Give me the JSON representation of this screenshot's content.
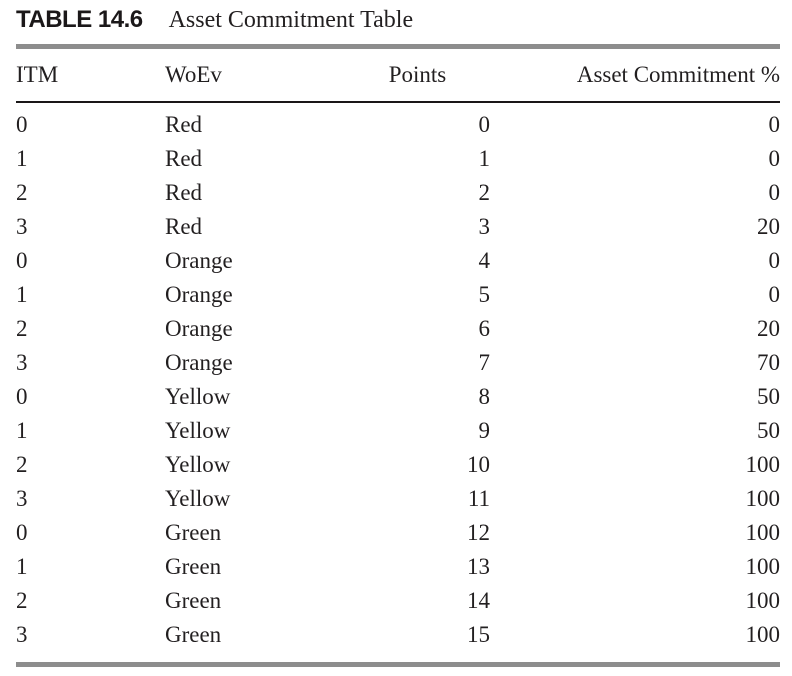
{
  "title": {
    "label": "TABLE 14.6",
    "caption": "Asset Commitment Table"
  },
  "table": {
    "columns": [
      "ITM",
      "WoEv",
      "Points",
      "Asset Commitment %"
    ],
    "rows": [
      [
        "0",
        "Red",
        "0",
        "0"
      ],
      [
        "1",
        "Red",
        "1",
        "0"
      ],
      [
        "2",
        "Red",
        "2",
        "0"
      ],
      [
        "3",
        "Red",
        "3",
        "20"
      ],
      [
        "0",
        "Orange",
        "4",
        "0"
      ],
      [
        "1",
        "Orange",
        "5",
        "0"
      ],
      [
        "2",
        "Orange",
        "6",
        "20"
      ],
      [
        "3",
        "Orange",
        "7",
        "70"
      ],
      [
        "0",
        "Yellow",
        "8",
        "50"
      ],
      [
        "1",
        "Yellow",
        "9",
        "50"
      ],
      [
        "2",
        "Yellow",
        "10",
        "100"
      ],
      [
        "3",
        "Yellow",
        "11",
        "100"
      ],
      [
        "0",
        "Green",
        "12",
        "100"
      ],
      [
        "1",
        "Green",
        "13",
        "100"
      ],
      [
        "2",
        "Green",
        "14",
        "100"
      ],
      [
        "3",
        "Green",
        "15",
        "100"
      ]
    ]
  },
  "colors": {
    "text": "#221f20",
    "rule_gray": "#8d8d8d",
    "rule_black": "#1a1718",
    "background": "#ffffff"
  }
}
